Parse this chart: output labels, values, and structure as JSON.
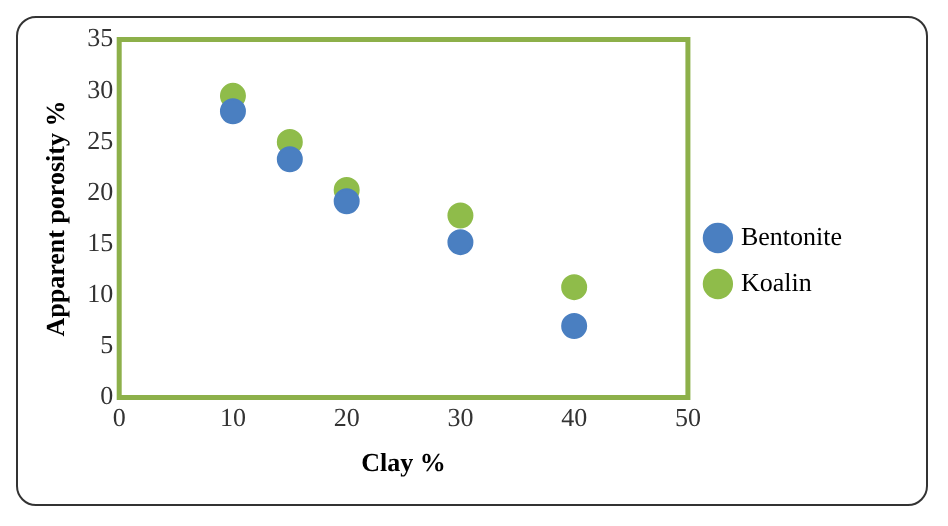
{
  "chart_data": {
    "type": "scatter",
    "xlabel": "Clay %",
    "ylabel": "Apparent porosity %",
    "x": [
      10,
      15,
      20,
      30,
      40
    ],
    "series": [
      {
        "name": "Bentonite",
        "color": "#4a7fc1",
        "values": [
          28,
          23.3,
          19.2,
          15.2,
          7
        ]
      },
      {
        "name": "Koalin",
        "color": "#8fbc4a",
        "values": [
          29.5,
          25,
          20.3,
          17.8,
          10.8
        ]
      }
    ],
    "xlim": [
      0,
      50
    ],
    "xticks": [
      0,
      10,
      20,
      30,
      40,
      50
    ],
    "ylim": [
      0,
      35
    ],
    "yticks": [
      0,
      5,
      10,
      15,
      20,
      25,
      30,
      35
    ],
    "grid": false,
    "legend": "right",
    "marker": "circle"
  }
}
